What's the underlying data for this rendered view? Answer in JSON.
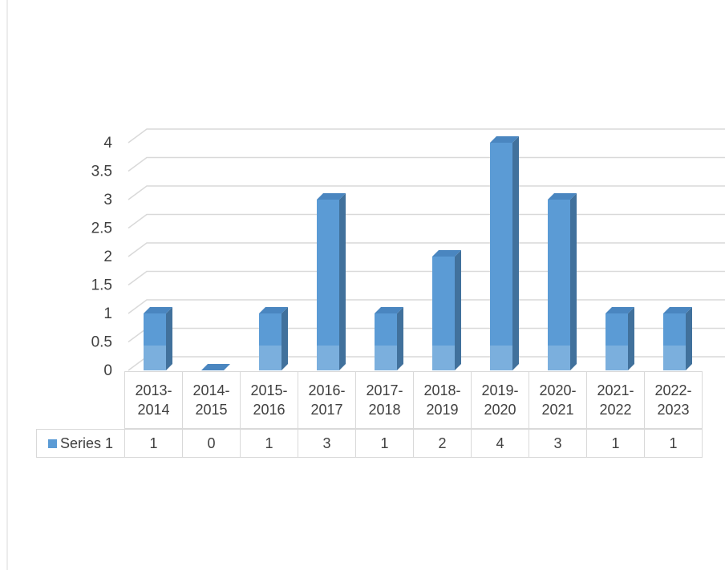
{
  "chart_data": {
    "type": "bar",
    "categories": [
      "2013-2014",
      "2014-2015",
      "2015-2016",
      "2016-2017",
      "2017-2018",
      "2018-2019",
      "2019-2020",
      "2020-2021",
      "2021-2022",
      "2022-2023"
    ],
    "series": [
      {
        "name": "Series 1",
        "color": "#5b9bd5",
        "values": [
          1,
          0,
          1,
          3,
          1,
          2,
          4,
          3,
          1,
          1
        ]
      }
    ],
    "ylim": [
      0,
      4
    ],
    "yticks": [
      0,
      0.5,
      1,
      1.5,
      2,
      2.5,
      3,
      3.5,
      4
    ],
    "grid": true,
    "data_table": true
  }
}
